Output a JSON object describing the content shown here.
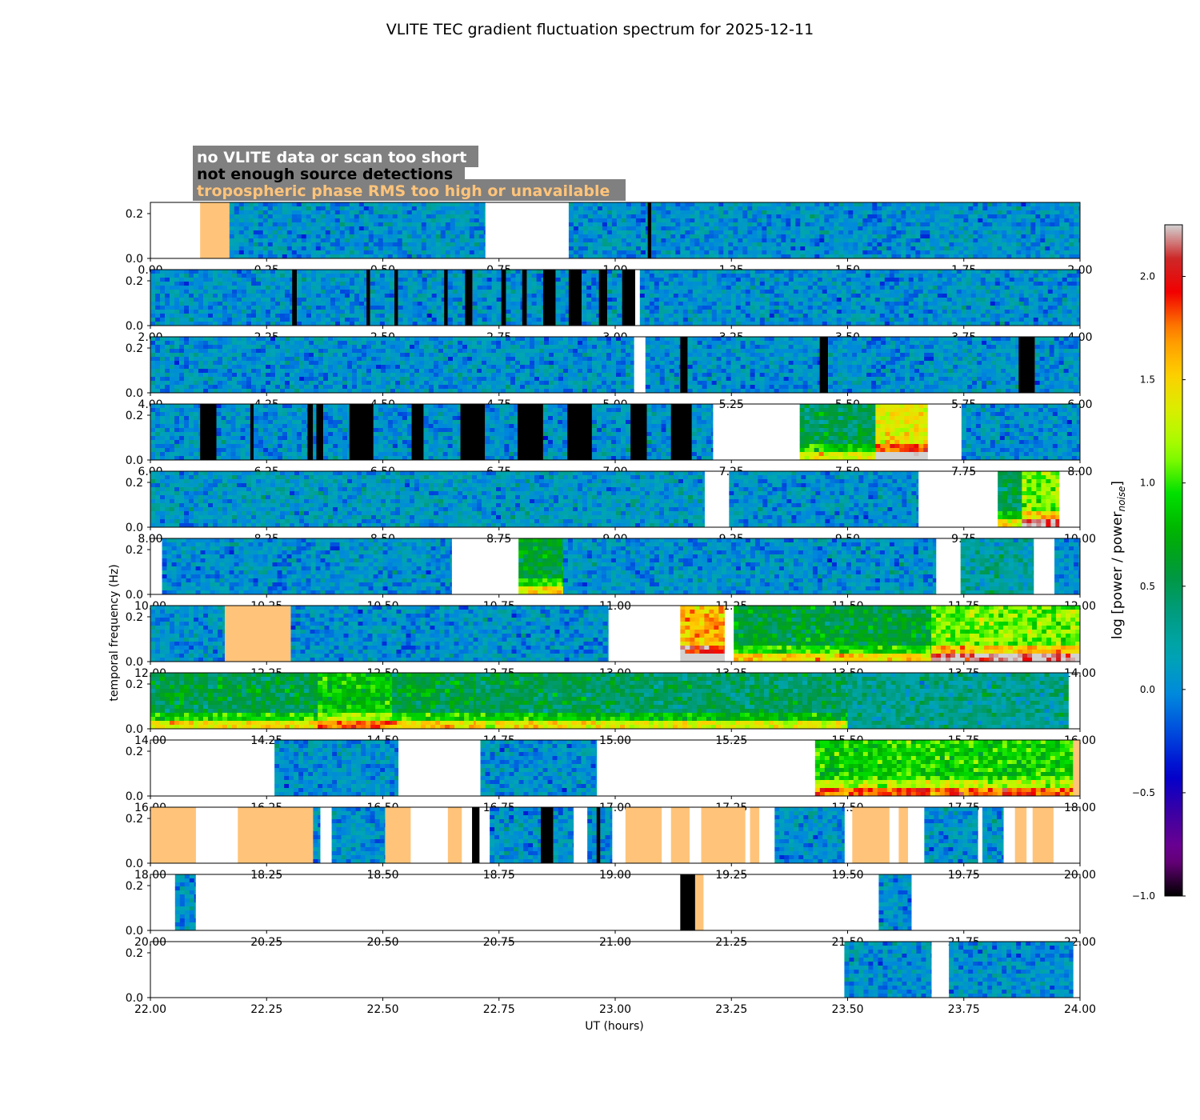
{
  "chart_data": {
    "type": "heatmap",
    "title": "VLITE TEC gradient fluctuation spectrum for 2025-12-11",
    "xlabel": "UT (hours)",
    "ylabel": "temporal frequency (Hz)",
    "colorbar_label": "log [power / power",
    "colorbar_label_sub": "noise",
    "colorbar_label_end": "]",
    "colorbar_range": [
      -1.0,
      2.25
    ],
    "colorbar_ticks": [
      "−1.0",
      "−0.5",
      "0.0",
      "0.5",
      "1.0",
      "1.5",
      "2.0"
    ],
    "colorbar_tick_values": [
      -1.0,
      -0.5,
      0.0,
      0.5,
      1.0,
      1.5,
      2.0
    ],
    "ylim": [
      0,
      0.25
    ],
    "y_ticks": [
      "0.0",
      "0.2"
    ],
    "legend": [
      {
        "text": "no VLITE data or scan too short",
        "color": "#ffffff"
      },
      {
        "text": "not enough source detections",
        "color": "#000000"
      },
      {
        "text": "tropospheric phase RMS too high or unavailable",
        "color": "#ffc47a"
      }
    ],
    "panels": [
      {
        "xlim": [
          0,
          2
        ],
        "x_ticks": [
          "0.00",
          "0.25",
          "0.50",
          "0.75",
          "1.00",
          "1.25",
          "1.50",
          "1.75",
          "2.00"
        ],
        "segments": [
          [
            0.0,
            0.107,
            "nodata"
          ],
          [
            0.107,
            0.17,
            "tropo"
          ],
          [
            0.17,
            0.72,
            "data",
            0.05
          ],
          [
            0.72,
            0.9,
            "nodata"
          ],
          [
            0.9,
            1.07,
            "data",
            0.05
          ],
          [
            1.07,
            1.078,
            "fewsrc"
          ],
          [
            1.078,
            2.0,
            "data",
            0.05
          ]
        ]
      },
      {
        "xlim": [
          2,
          4
        ],
        "x_ticks": [
          "2.00",
          "2.25",
          "2.50",
          "2.75",
          "3.00",
          "3.25",
          "3.50",
          "3.75",
          "4.00"
        ],
        "segments": [
          [
            2.0,
            2.305,
            "data",
            0.05
          ],
          [
            2.305,
            2.315,
            "fewsrc"
          ],
          [
            2.315,
            2.465,
            "data",
            0.05
          ],
          [
            2.465,
            2.473,
            "fewsrc"
          ],
          [
            2.473,
            2.525,
            "data",
            0.05
          ],
          [
            2.525,
            2.533,
            "fewsrc"
          ],
          [
            2.533,
            2.632,
            "data",
            0.05
          ],
          [
            2.632,
            2.64,
            "fewsrc"
          ],
          [
            2.64,
            2.677,
            "data",
            0.05
          ],
          [
            2.677,
            2.693,
            "fewsrc"
          ],
          [
            2.693,
            2.755,
            "data",
            0.05
          ],
          [
            2.755,
            2.765,
            "fewsrc"
          ],
          [
            2.765,
            2.8,
            "data",
            0.05
          ],
          [
            2.8,
            2.81,
            "fewsrc"
          ],
          [
            2.81,
            2.845,
            "data",
            0.05
          ],
          [
            2.845,
            2.872,
            "fewsrc"
          ],
          [
            2.872,
            2.9,
            "data",
            0.05
          ],
          [
            2.9,
            2.928,
            "fewsrc"
          ],
          [
            2.928,
            2.965,
            "data",
            0.05
          ],
          [
            2.965,
            2.983,
            "fewsrc"
          ],
          [
            2.983,
            3.015,
            "data",
            0.05
          ],
          [
            3.015,
            3.043,
            "fewsrc"
          ],
          [
            3.043,
            3.053,
            "nodata"
          ],
          [
            3.053,
            4.0,
            "data",
            0.05
          ]
        ]
      },
      {
        "xlim": [
          4,
          6
        ],
        "x_ticks": [
          "4.00",
          "4.25",
          "4.50",
          "4.75",
          "5.00",
          "5.25",
          "5.50",
          "5.75",
          "6.00"
        ],
        "segments": [
          [
            4.0,
            5.04,
            "data",
            0.05
          ],
          [
            5.04,
            5.065,
            "nodata"
          ],
          [
            5.065,
            5.14,
            "data",
            0.05
          ],
          [
            5.14,
            5.156,
            "fewsrc"
          ],
          [
            5.156,
            5.44,
            "data",
            0.05
          ],
          [
            5.44,
            5.458,
            "fewsrc"
          ],
          [
            5.458,
            5.868,
            "data",
            0.05
          ],
          [
            5.868,
            5.903,
            "fewsrc"
          ],
          [
            5.903,
            6.0,
            "data",
            0.05
          ]
        ]
      },
      {
        "xlim": [
          6,
          8
        ],
        "x_ticks": [
          "6.00",
          "6.25",
          "6.50",
          "6.75",
          "7.00",
          "7.25",
          "7.50",
          "7.75",
          "8.00"
        ],
        "segments": [
          [
            6.0,
            6.107,
            "data",
            0.05
          ],
          [
            6.107,
            6.142,
            "fewsrc"
          ],
          [
            6.142,
            6.215,
            "data",
            0.05
          ],
          [
            6.215,
            6.222,
            "fewsrc"
          ],
          [
            6.222,
            6.338,
            "data",
            0.05
          ],
          [
            6.338,
            6.35,
            "fewsrc"
          ],
          [
            6.35,
            6.357,
            "data",
            0.05
          ],
          [
            6.357,
            6.372,
            "fewsrc"
          ],
          [
            6.372,
            6.428,
            "data",
            0.05
          ],
          [
            6.428,
            6.48,
            "fewsrc"
          ],
          [
            6.48,
            6.562,
            "data",
            0.05
          ],
          [
            6.562,
            6.588,
            "fewsrc"
          ],
          [
            6.588,
            6.667,
            "data",
            0.05
          ],
          [
            6.667,
            6.72,
            "fewsrc"
          ],
          [
            6.72,
            6.79,
            "data",
            0.05
          ],
          [
            6.79,
            6.845,
            "fewsrc"
          ],
          [
            6.845,
            6.897,
            "data",
            0.05
          ],
          [
            6.897,
            6.95,
            "fewsrc"
          ],
          [
            6.95,
            7.033,
            "data",
            0.05
          ],
          [
            7.033,
            7.068,
            "fewsrc"
          ],
          [
            7.068,
            7.12,
            "data",
            0.05
          ],
          [
            7.12,
            7.165,
            "fewsrc"
          ],
          [
            7.165,
            7.21,
            "data",
            0.05
          ],
          [
            7.21,
            7.397,
            "nodata"
          ],
          [
            7.397,
            7.56,
            "data",
            0.5
          ],
          [
            7.56,
            7.672,
            "data",
            1.4
          ],
          [
            7.672,
            7.745,
            "nodata"
          ],
          [
            7.745,
            8.0,
            "data",
            0.05
          ]
        ]
      },
      {
        "xlim": [
          8,
          10
        ],
        "x_ticks": [
          "8.00",
          "8.25",
          "8.50",
          "8.75",
          "9.00",
          "9.25",
          "9.50",
          "9.75",
          "10.00"
        ],
        "segments": [
          [
            8.0,
            9.192,
            "data",
            0.1
          ],
          [
            9.192,
            9.245,
            "nodata"
          ],
          [
            9.245,
            9.652,
            "data",
            0.05
          ],
          [
            9.652,
            9.823,
            "nodata"
          ],
          [
            9.823,
            9.875,
            "data",
            0.5
          ],
          [
            9.875,
            9.955,
            "data",
            1.1
          ],
          [
            9.955,
            10.0,
            "nodata"
          ]
        ]
      },
      {
        "xlim": [
          10,
          12
        ],
        "x_ticks": [
          "10.00",
          "10.25",
          "10.50",
          "10.75",
          "11.00",
          "11.25",
          "11.50",
          "11.75",
          "12.00"
        ],
        "segments": [
          [
            10.0,
            10.025,
            "nodata"
          ],
          [
            10.025,
            10.648,
            "data",
            0.05
          ],
          [
            10.648,
            10.792,
            "nodata"
          ],
          [
            10.792,
            10.888,
            "data",
            0.6
          ],
          [
            10.888,
            11.69,
            "data",
            0.05
          ],
          [
            11.69,
            11.743,
            "nodata"
          ],
          [
            11.743,
            11.9,
            "data",
            0.25
          ],
          [
            11.9,
            11.945,
            "nodata"
          ],
          [
            11.945,
            12.0,
            "data",
            0.05
          ]
        ]
      },
      {
        "xlim": [
          12,
          14
        ],
        "x_ticks": [
          "12.00",
          "12.25",
          "12.50",
          "12.75",
          "13.00",
          "13.25",
          "13.50",
          "13.75",
          "14.00"
        ],
        "segments": [
          [
            12.0,
            12.16,
            "data",
            0.05
          ],
          [
            12.16,
            12.302,
            "tropo"
          ],
          [
            12.302,
            12.985,
            "data",
            0.05
          ],
          [
            12.985,
            13.14,
            "nodata"
          ],
          [
            13.14,
            13.235,
            "data",
            1.6
          ],
          [
            13.235,
            13.255,
            "nodata"
          ],
          [
            13.255,
            13.68,
            "data",
            0.6
          ],
          [
            13.68,
            14.0,
            "data",
            1.1
          ]
        ]
      },
      {
        "xlim": [
          14,
          16
        ],
        "x_ticks": [
          "14.00",
          "14.25",
          "14.50",
          "14.75",
          "15.00",
          "15.25",
          "15.50",
          "15.75",
          "16.00"
        ],
        "segments": [
          [
            14.0,
            14.36,
            "data",
            0.55
          ],
          [
            14.36,
            14.52,
            "data",
            0.85
          ],
          [
            14.52,
            14.7,
            "data",
            0.6
          ],
          [
            14.7,
            15.0,
            "data",
            0.5
          ],
          [
            15.0,
            15.5,
            "data",
            0.45
          ],
          [
            15.5,
            15.975,
            "data",
            0.3
          ],
          [
            15.975,
            16.0,
            "nodata"
          ]
        ]
      },
      {
        "xlim": [
          16,
          18
        ],
        "x_ticks": [
          "16.00",
          "16.25",
          "16.50",
          "16.75",
          "17.00",
          "17.25",
          "17.50",
          "17.75",
          "18.00"
        ],
        "segments": [
          [
            16.0,
            16.267,
            "nodata"
          ],
          [
            16.267,
            16.533,
            "data",
            0.05
          ],
          [
            16.533,
            16.71,
            "nodata"
          ],
          [
            16.71,
            16.96,
            "data",
            0.05
          ],
          [
            16.96,
            17.43,
            "nodata"
          ],
          [
            17.43,
            17.985,
            "data",
            0.9
          ],
          [
            17.985,
            18.0,
            "tropo"
          ]
        ]
      },
      {
        "xlim": [
          18,
          20
        ],
        "x_ticks": [
          "18.00",
          "18.25",
          "18.50",
          "18.75",
          "19.00",
          "19.25",
          "19.50",
          "19.75",
          "20.00"
        ],
        "segments": [
          [
            18.0,
            18.098,
            "tropo"
          ],
          [
            18.098,
            18.188,
            "nodata"
          ],
          [
            18.188,
            18.35,
            "tropo"
          ],
          [
            18.35,
            18.365,
            "data",
            0.05
          ],
          [
            18.365,
            18.39,
            "nodata"
          ],
          [
            18.39,
            18.505,
            "data",
            0.05
          ],
          [
            18.505,
            18.56,
            "tropo"
          ],
          [
            18.56,
            18.64,
            "nodata"
          ],
          [
            18.64,
            18.67,
            "tropo"
          ],
          [
            18.67,
            18.692,
            "nodata"
          ],
          [
            18.692,
            18.708,
            "fewsrc"
          ],
          [
            18.708,
            18.73,
            "nodata"
          ],
          [
            18.73,
            18.84,
            "data",
            0.05
          ],
          [
            18.84,
            18.867,
            "fewsrc"
          ],
          [
            18.867,
            18.91,
            "data",
            0.05
          ],
          [
            18.91,
            18.94,
            "nodata"
          ],
          [
            18.94,
            18.96,
            "data",
            0.05
          ],
          [
            18.96,
            18.968,
            "fewsrc"
          ],
          [
            18.968,
            18.993,
            "data",
            0.05
          ],
          [
            18.993,
            19.022,
            "nodata"
          ],
          [
            19.022,
            19.1,
            "tropo"
          ],
          [
            19.1,
            19.12,
            "nodata"
          ],
          [
            19.12,
            19.16,
            "tropo"
          ],
          [
            19.16,
            19.185,
            "nodata"
          ],
          [
            19.185,
            19.28,
            "tropo"
          ],
          [
            19.28,
            19.29,
            "nodata"
          ],
          [
            19.29,
            19.31,
            "tropo"
          ],
          [
            19.31,
            19.343,
            "nodata"
          ],
          [
            19.343,
            19.493,
            "data",
            0.05
          ],
          [
            19.493,
            19.51,
            "nodata"
          ],
          [
            19.51,
            19.59,
            "tropo"
          ],
          [
            19.59,
            19.61,
            "nodata"
          ],
          [
            19.61,
            19.63,
            "tropo"
          ],
          [
            19.63,
            19.665,
            "nodata"
          ],
          [
            19.665,
            19.78,
            "data",
            0.05
          ],
          [
            19.78,
            19.79,
            "nodata"
          ],
          [
            19.79,
            19.835,
            "data",
            0.05
          ],
          [
            19.835,
            19.86,
            "nodata"
          ],
          [
            19.86,
            19.885,
            "tropo"
          ],
          [
            19.885,
            19.898,
            "nodata"
          ],
          [
            19.898,
            19.943,
            "tropo"
          ],
          [
            19.943,
            20.0,
            "nodata"
          ]
        ]
      },
      {
        "xlim": [
          20,
          22
        ],
        "x_ticks": [
          "20.00",
          "20.25",
          "20.50",
          "20.75",
          "21.00",
          "21.25",
          "21.50",
          "21.75",
          "22.00"
        ],
        "segments": [
          [
            20.0,
            20.053,
            "nodata"
          ],
          [
            20.053,
            20.097,
            "data",
            0.05
          ],
          [
            20.097,
            21.14,
            "nodata"
          ],
          [
            21.14,
            21.172,
            "fewsrc"
          ],
          [
            21.172,
            21.19,
            "tropo"
          ],
          [
            21.19,
            21.567,
            "nodata"
          ],
          [
            21.567,
            21.637,
            "data",
            0.05
          ],
          [
            21.637,
            22.0,
            "nodata"
          ]
        ]
      },
      {
        "xlim": [
          22,
          24
        ],
        "x_ticks": [
          "22.00",
          "22.25",
          "22.50",
          "22.75",
          "23.00",
          "23.25",
          "23.50",
          "23.75",
          "24.00"
        ],
        "segments": [
          [
            22.0,
            23.493,
            "nodata"
          ],
          [
            23.493,
            23.68,
            "data",
            0.05
          ],
          [
            23.68,
            23.718,
            "nodata"
          ],
          [
            23.718,
            23.985,
            "data",
            0.05
          ],
          [
            23.985,
            24.0,
            "nodata"
          ]
        ]
      }
    ]
  }
}
